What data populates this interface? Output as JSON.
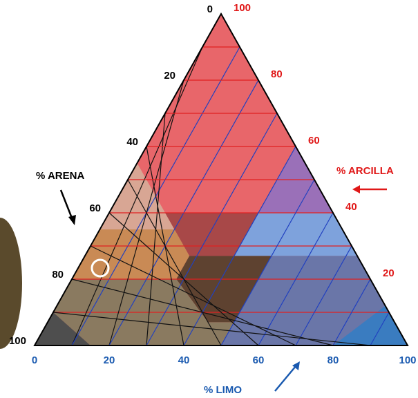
{
  "axes": {
    "sand": {
      "label": "% ARENA",
      "ticks": [
        0,
        20,
        40,
        60,
        80,
        100
      ]
    },
    "clay": {
      "label": "% ARCILLA",
      "ticks": [
        100,
        80,
        60,
        40,
        20
      ]
    },
    "silt": {
      "label": "% LIMO",
      "ticks": [
        0,
        20,
        40,
        60,
        80,
        100
      ]
    }
  }
}
